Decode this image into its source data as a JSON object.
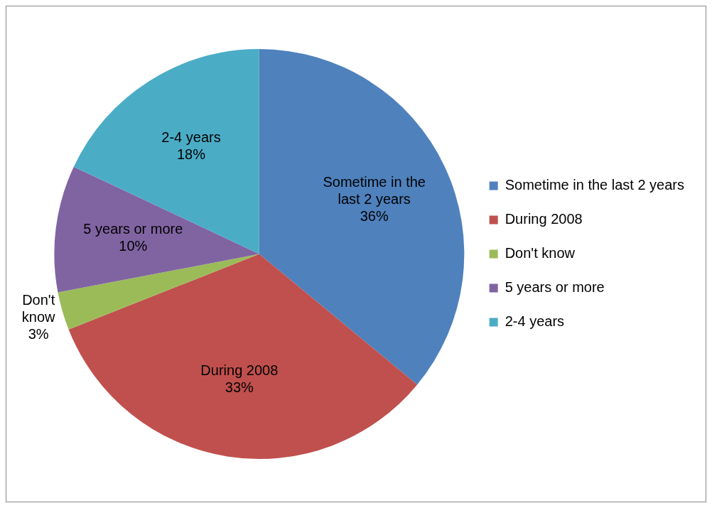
{
  "chart_data": {
    "type": "pie",
    "categories": [
      "Sometime in the last 2 years",
      "During 2008",
      "Don't know",
      "5 years or more",
      "2-4 years"
    ],
    "values": [
      36,
      33,
      3,
      10,
      18
    ],
    "colors": [
      "#4f81bd",
      "#c0504d",
      "#9bbb59",
      "#8064a2",
      "#4bacc6"
    ],
    "value_labels": [
      "36%",
      "33%",
      "3%",
      "10%",
      "18%"
    ],
    "legend": "right"
  }
}
